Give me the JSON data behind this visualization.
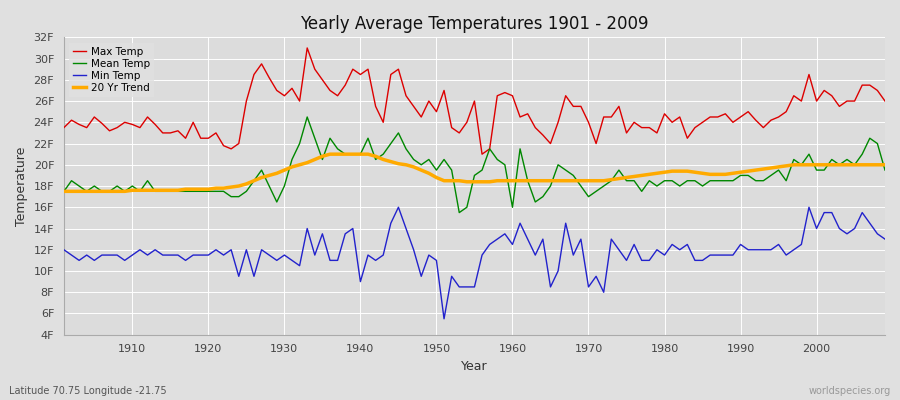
{
  "title": "Yearly Average Temperatures 1901 - 2009",
  "xlabel": "Year",
  "ylabel": "Temperature",
  "subtitle": "Latitude 70.75 Longitude -21.75",
  "watermark": "worldspecies.org",
  "years": [
    1901,
    1902,
    1903,
    1904,
    1905,
    1906,
    1907,
    1908,
    1909,
    1910,
    1911,
    1912,
    1913,
    1914,
    1915,
    1916,
    1917,
    1918,
    1919,
    1920,
    1921,
    1922,
    1923,
    1924,
    1925,
    1926,
    1927,
    1928,
    1929,
    1930,
    1931,
    1932,
    1933,
    1934,
    1935,
    1936,
    1937,
    1938,
    1939,
    1940,
    1941,
    1942,
    1943,
    1944,
    1945,
    1946,
    1947,
    1948,
    1949,
    1950,
    1951,
    1952,
    1953,
    1954,
    1955,
    1956,
    1957,
    1958,
    1959,
    1960,
    1961,
    1962,
    1963,
    1964,
    1965,
    1966,
    1967,
    1968,
    1969,
    1970,
    1971,
    1972,
    1973,
    1974,
    1975,
    1976,
    1977,
    1978,
    1979,
    1980,
    1981,
    1982,
    1983,
    1984,
    1985,
    1986,
    1987,
    1988,
    1989,
    1990,
    1991,
    1992,
    1993,
    1994,
    1995,
    1996,
    1997,
    1998,
    1999,
    2000,
    2001,
    2002,
    2003,
    2004,
    2005,
    2006,
    2007,
    2008,
    2009
  ],
  "max_temp": [
    23.5,
    24.2,
    23.8,
    23.5,
    24.5,
    23.9,
    23.2,
    23.5,
    24.0,
    23.8,
    23.5,
    24.5,
    23.8,
    23.0,
    23.0,
    23.2,
    22.5,
    24.0,
    22.5,
    22.5,
    23.0,
    21.8,
    21.5,
    22.0,
    26.0,
    28.5,
    29.5,
    28.2,
    27.0,
    26.5,
    27.2,
    26.0,
    31.0,
    29.0,
    28.0,
    27.0,
    26.5,
    27.5,
    29.0,
    28.5,
    29.0,
    25.5,
    24.0,
    28.5,
    29.0,
    26.5,
    25.5,
    24.5,
    26.0,
    25.0,
    27.0,
    23.5,
    23.0,
    24.0,
    26.0,
    21.0,
    21.5,
    26.5,
    26.8,
    26.5,
    24.5,
    24.8,
    23.5,
    22.8,
    22.0,
    24.0,
    26.5,
    25.5,
    25.5,
    24.0,
    22.0,
    24.5,
    24.5,
    25.5,
    23.0,
    24.0,
    23.5,
    23.5,
    23.0,
    24.8,
    24.0,
    24.5,
    22.5,
    23.5,
    24.0,
    24.5,
    24.5,
    24.8,
    24.0,
    24.5,
    25.0,
    24.2,
    23.5,
    24.2,
    24.5,
    25.0,
    26.5,
    26.0,
    28.5,
    26.0,
    27.0,
    26.5,
    25.5,
    26.0,
    26.0,
    27.5,
    27.5,
    27.0,
    26.0
  ],
  "mean_temp": [
    17.5,
    18.5,
    18.0,
    17.5,
    18.0,
    17.5,
    17.5,
    18.0,
    17.5,
    18.0,
    17.5,
    18.5,
    17.5,
    17.5,
    17.5,
    17.5,
    17.5,
    17.5,
    17.5,
    17.5,
    17.5,
    17.5,
    17.0,
    17.0,
    17.5,
    18.5,
    19.5,
    18.0,
    16.5,
    18.0,
    20.5,
    22.0,
    24.5,
    22.5,
    20.5,
    22.5,
    21.5,
    21.0,
    21.0,
    21.0,
    22.5,
    20.5,
    21.0,
    22.0,
    23.0,
    21.5,
    20.5,
    20.0,
    20.5,
    19.5,
    20.5,
    19.5,
    15.5,
    16.0,
    19.0,
    19.5,
    21.5,
    20.5,
    20.0,
    16.0,
    21.5,
    18.5,
    16.5,
    17.0,
    18.0,
    20.0,
    19.5,
    19.0,
    18.0,
    17.0,
    17.5,
    18.0,
    18.5,
    19.5,
    18.5,
    18.5,
    17.5,
    18.5,
    18.0,
    18.5,
    18.5,
    18.0,
    18.5,
    18.5,
    18.0,
    18.5,
    18.5,
    18.5,
    18.5,
    19.0,
    19.0,
    18.5,
    18.5,
    19.0,
    19.5,
    18.5,
    20.5,
    20.0,
    21.0,
    19.5,
    19.5,
    20.5,
    20.0,
    20.5,
    20.0,
    21.0,
    22.5,
    22.0,
    19.5
  ],
  "min_temp": [
    12.0,
    11.5,
    11.0,
    11.5,
    11.0,
    11.5,
    11.5,
    11.5,
    11.0,
    11.5,
    12.0,
    11.5,
    12.0,
    11.5,
    11.5,
    11.5,
    11.0,
    11.5,
    11.5,
    11.5,
    12.0,
    11.5,
    12.0,
    9.5,
    12.0,
    9.5,
    12.0,
    11.5,
    11.0,
    11.5,
    11.0,
    10.5,
    14.0,
    11.5,
    13.5,
    11.0,
    11.0,
    13.5,
    14.0,
    9.0,
    11.5,
    11.0,
    11.5,
    14.5,
    16.0,
    14.0,
    12.0,
    9.5,
    11.5,
    11.0,
    5.5,
    9.5,
    8.5,
    8.5,
    8.5,
    11.5,
    12.5,
    13.0,
    13.5,
    12.5,
    14.5,
    13.0,
    11.5,
    13.0,
    8.5,
    10.0,
    14.5,
    11.5,
    13.0,
    8.5,
    9.5,
    8.0,
    13.0,
    12.0,
    11.0,
    12.5,
    11.0,
    11.0,
    12.0,
    11.5,
    12.5,
    12.0,
    12.5,
    11.0,
    11.0,
    11.5,
    11.5,
    11.5,
    11.5,
    12.5,
    12.0,
    12.0,
    12.0,
    12.0,
    12.5,
    11.5,
    12.0,
    12.5,
    16.0,
    14.0,
    15.5,
    15.5,
    14.0,
    13.5,
    14.0,
    15.5,
    14.5,
    13.5,
    13.0
  ],
  "trend": [
    17.5,
    17.5,
    17.5,
    17.5,
    17.5,
    17.5,
    17.5,
    17.5,
    17.5,
    17.6,
    17.6,
    17.6,
    17.6,
    17.6,
    17.6,
    17.6,
    17.7,
    17.7,
    17.7,
    17.7,
    17.8,
    17.8,
    17.9,
    18.0,
    18.2,
    18.5,
    18.8,
    19.0,
    19.2,
    19.5,
    19.8,
    20.0,
    20.2,
    20.5,
    20.8,
    21.0,
    21.0,
    21.0,
    21.0,
    21.0,
    21.0,
    20.8,
    20.5,
    20.3,
    20.1,
    20.0,
    19.8,
    19.5,
    19.2,
    18.8,
    18.5,
    18.5,
    18.5,
    18.4,
    18.4,
    18.4,
    18.4,
    18.5,
    18.5,
    18.5,
    18.5,
    18.5,
    18.5,
    18.5,
    18.5,
    18.5,
    18.5,
    18.5,
    18.5,
    18.5,
    18.5,
    18.5,
    18.6,
    18.7,
    18.8,
    18.9,
    19.0,
    19.1,
    19.2,
    19.3,
    19.4,
    19.4,
    19.4,
    19.3,
    19.2,
    19.1,
    19.1,
    19.1,
    19.2,
    19.3,
    19.4,
    19.5,
    19.6,
    19.7,
    19.8,
    19.9,
    20.0,
    20.0,
    20.0,
    20.0,
    20.0,
    20.0,
    20.0,
    20.0,
    20.0,
    20.0,
    20.0,
    20.0,
    20.0
  ],
  "max_color": "#dd0000",
  "mean_color": "#008800",
  "min_color": "#2222cc",
  "trend_color": "#ffaa00",
  "bg_color": "#e0e0e0",
  "plot_bg_color": "#dcdcdc",
  "grid_color": "#ffffff",
  "ylim": [
    4,
    32
  ],
  "yticks": [
    4,
    6,
    8,
    10,
    12,
    14,
    16,
    18,
    20,
    22,
    24,
    26,
    28,
    30,
    32
  ],
  "xlim": [
    1901,
    2009
  ],
  "xticks": [
    1910,
    1920,
    1930,
    1940,
    1950,
    1960,
    1970,
    1980,
    1990,
    2000
  ],
  "figwidth": 9.0,
  "figheight": 4.0,
  "dpi": 100
}
